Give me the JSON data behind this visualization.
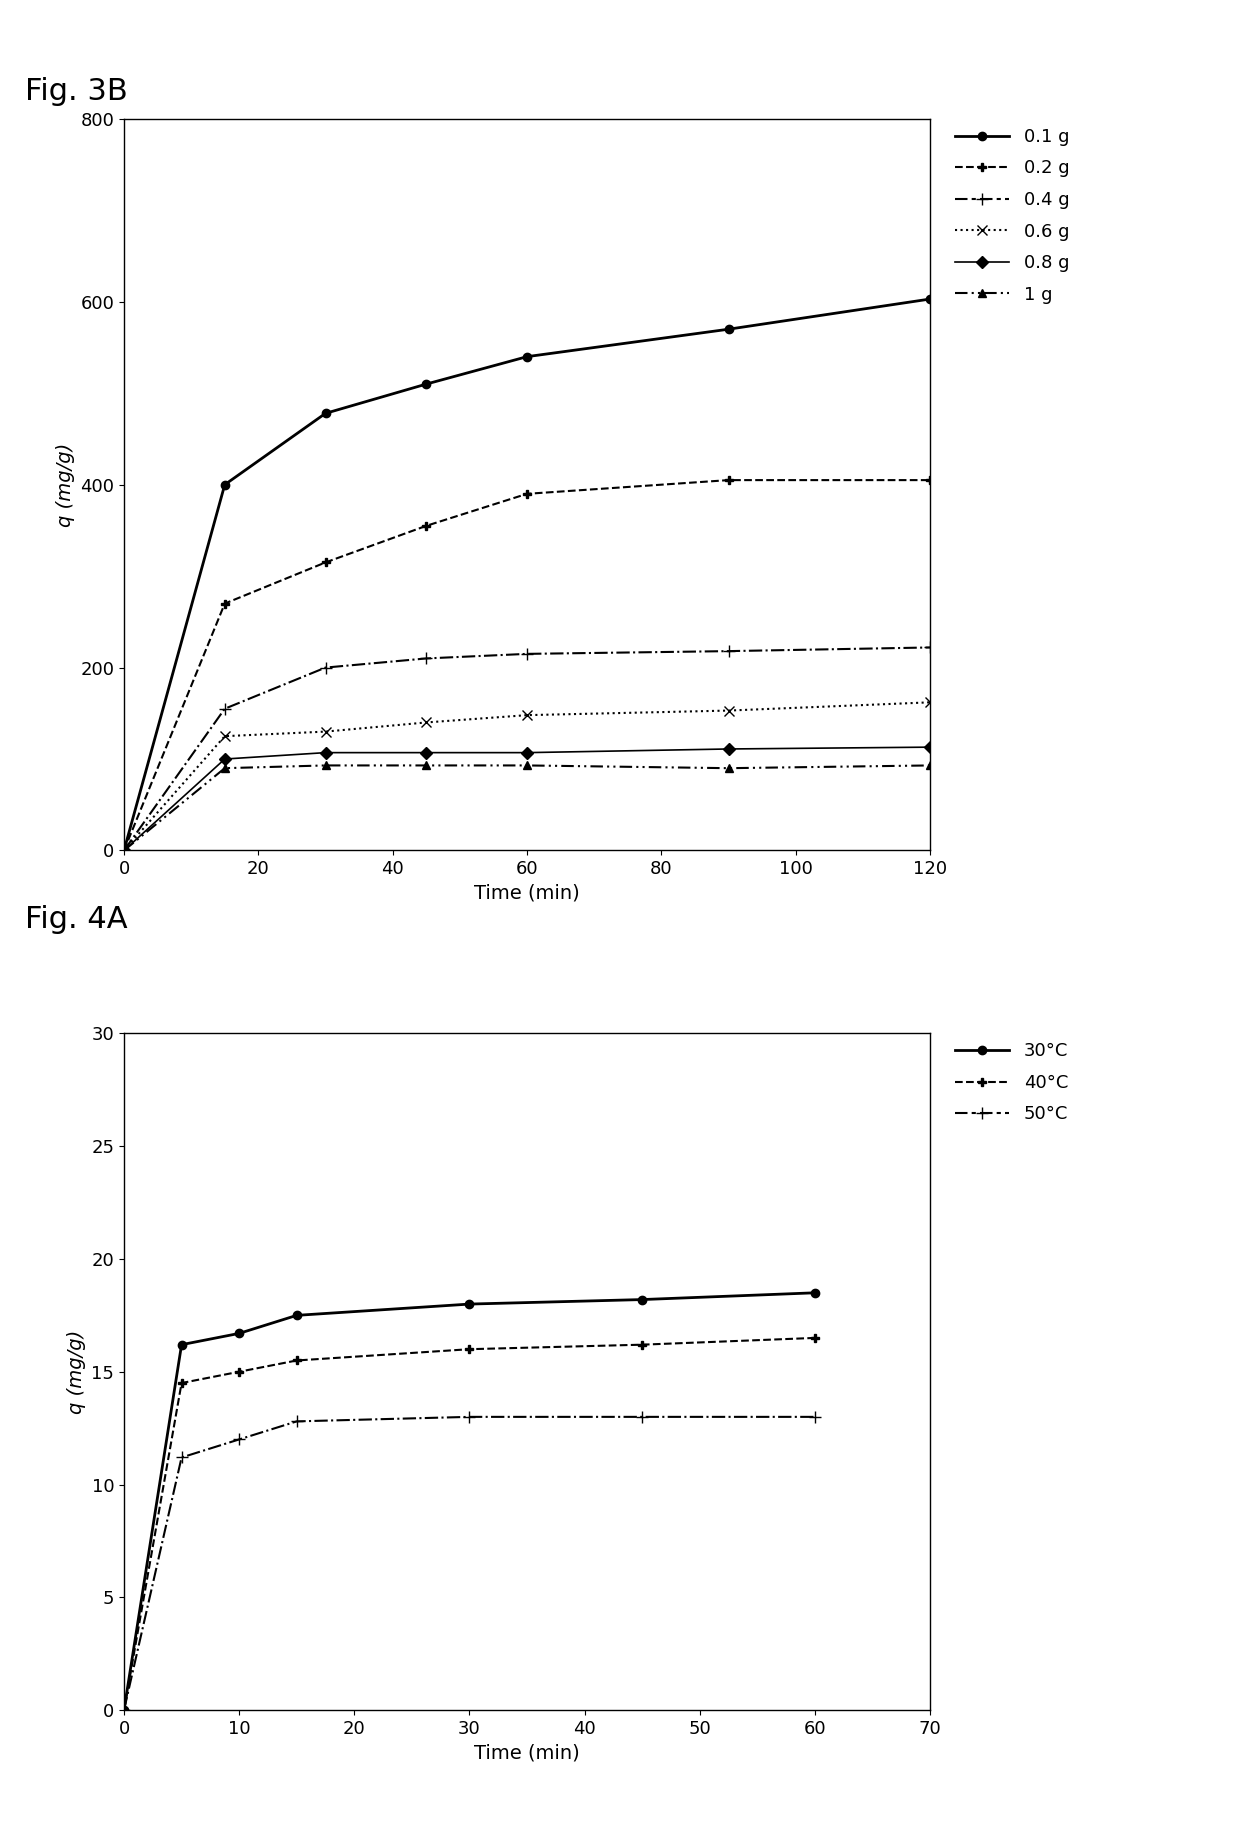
{
  "fig3b": {
    "title": "Fig. 3B",
    "xlabel": "Time (min)",
    "ylabel": "q (mg/g)",
    "xlim": [
      0,
      120
    ],
    "ylim": [
      0,
      800
    ],
    "xticks": [
      0,
      20,
      40,
      60,
      80,
      100,
      120
    ],
    "yticks": [
      0,
      200,
      400,
      600,
      800
    ],
    "series": [
      {
        "label": "0.1 g",
        "x": [
          0,
          15,
          30,
          45,
          60,
          90,
          120
        ],
        "y": [
          0,
          400,
          478,
          510,
          540,
          570,
          603
        ],
        "linestyle": "solid",
        "marker": "o",
        "color": "black",
        "linewidth": 2.0,
        "markersize": 6
      },
      {
        "label": "0.2 g",
        "x": [
          0,
          15,
          30,
          45,
          60,
          90,
          120
        ],
        "y": [
          0,
          270,
          315,
          355,
          390,
          405,
          405
        ],
        "linestyle": "dashed",
        "marker": "P",
        "color": "black",
        "linewidth": 1.5,
        "markersize": 6
      },
      {
        "label": "0.4 g",
        "x": [
          0,
          15,
          30,
          45,
          60,
          90,
          120
        ],
        "y": [
          0,
          155,
          200,
          210,
          215,
          218,
          222
        ],
        "linestyle": "dashdot",
        "marker": "+",
        "color": "black",
        "linewidth": 1.5,
        "markersize": 8
      },
      {
        "label": "0.6 g",
        "x": [
          0,
          15,
          30,
          45,
          60,
          90,
          120
        ],
        "y": [
          0,
          125,
          130,
          140,
          148,
          153,
          162
        ],
        "linestyle": "dotted",
        "marker": "x",
        "color": "black",
        "linewidth": 1.5,
        "markersize": 7
      },
      {
        "label": "0.8 g",
        "x": [
          0,
          15,
          30,
          45,
          60,
          90,
          120
        ],
        "y": [
          0,
          100,
          107,
          107,
          107,
          111,
          113
        ],
        "linestyle": "solid",
        "marker": "D",
        "color": "black",
        "linewidth": 1.2,
        "markersize": 6
      },
      {
        "label": "1 g",
        "x": [
          0,
          15,
          30,
          45,
          60,
          90,
          120
        ],
        "y": [
          0,
          90,
          93,
          93,
          93,
          90,
          93
        ],
        "linestyle": "dashdotdot",
        "marker": "^",
        "color": "black",
        "linewidth": 1.5,
        "markersize": 6
      }
    ]
  },
  "fig4a": {
    "title": "Fig. 4A",
    "xlabel": "Time (min)",
    "ylabel": "q (mg/g)",
    "xlim": [
      0,
      70
    ],
    "ylim": [
      0,
      30
    ],
    "xticks": [
      0,
      10,
      20,
      30,
      40,
      50,
      60,
      70
    ],
    "yticks": [
      0,
      5,
      10,
      15,
      20,
      25,
      30
    ],
    "series": [
      {
        "label": "30°C",
        "x": [
          0,
          5,
          10,
          15,
          30,
          45,
          60
        ],
        "y": [
          0,
          16.2,
          16.7,
          17.5,
          18.0,
          18.2,
          18.5
        ],
        "linestyle": "solid",
        "marker": "o",
        "color": "black",
        "linewidth": 2.0,
        "markersize": 6
      },
      {
        "label": "40°C",
        "x": [
          0,
          5,
          10,
          15,
          30,
          45,
          60
        ],
        "y": [
          0,
          14.5,
          15.0,
          15.5,
          16.0,
          16.2,
          16.5
        ],
        "linestyle": "dashed",
        "marker": "P",
        "color": "black",
        "linewidth": 1.5,
        "markersize": 6
      },
      {
        "label": "50°C",
        "x": [
          0,
          5,
          10,
          15,
          30,
          45,
          60
        ],
        "y": [
          0,
          11.2,
          12.0,
          12.8,
          13.0,
          13.0,
          13.0
        ],
        "linestyle": "dashdot",
        "marker": "+",
        "color": "black",
        "linewidth": 1.5,
        "markersize": 8
      }
    ]
  },
  "background_color": "#ffffff",
  "text_color": "#000000",
  "fig_title_fontsize": 22,
  "axis_label_fontsize": 14,
  "tick_fontsize": 13,
  "legend_fontsize": 13
}
